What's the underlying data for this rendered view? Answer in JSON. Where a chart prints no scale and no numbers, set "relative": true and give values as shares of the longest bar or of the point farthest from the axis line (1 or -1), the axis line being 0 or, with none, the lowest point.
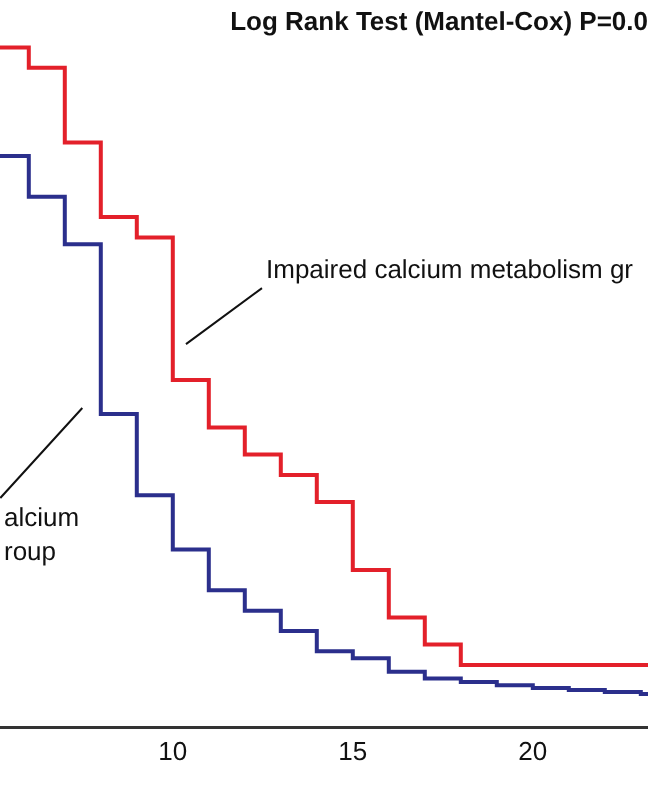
{
  "chart_data": {
    "type": "step",
    "title": "Log Rank Test (Mantel-Cox) P=0.0",
    "relative": true,
    "xlim": [
      5.2,
      23.2
    ],
    "xticks": [
      10,
      15,
      20
    ],
    "series": [
      {
        "color": "#e3202a",
        "x": [
          5.2,
          6,
          7,
          8,
          9,
          10,
          11,
          12,
          13,
          14,
          15,
          16,
          17,
          18,
          23.2
        ],
        "values": [
          1,
          0.97,
          0.86,
          0.75,
          0.72,
          0.51,
          0.44,
          0.4,
          0.37,
          0.33,
          0.23,
          0.16,
          0.12,
          0.09,
          0.09
        ]
      },
      {
        "color": "#2b2f8c",
        "x": [
          5.2,
          6,
          7,
          8,
          9,
          10,
          11,
          12,
          13,
          14,
          15,
          16,
          17,
          18,
          19,
          20,
          21,
          22,
          23,
          23.2
        ],
        "values": [
          0.84,
          0.78,
          0.71,
          0.46,
          0.34,
          0.26,
          0.2,
          0.17,
          0.14,
          0.11,
          0.1,
          0.08,
          0.07,
          0.065,
          0.06,
          0.056,
          0.053,
          0.05,
          0.047,
          0.047
        ]
      }
    ],
    "annotations": [
      "Impaired calcium metabolism gr",
      "alcium\nroup"
    ]
  }
}
